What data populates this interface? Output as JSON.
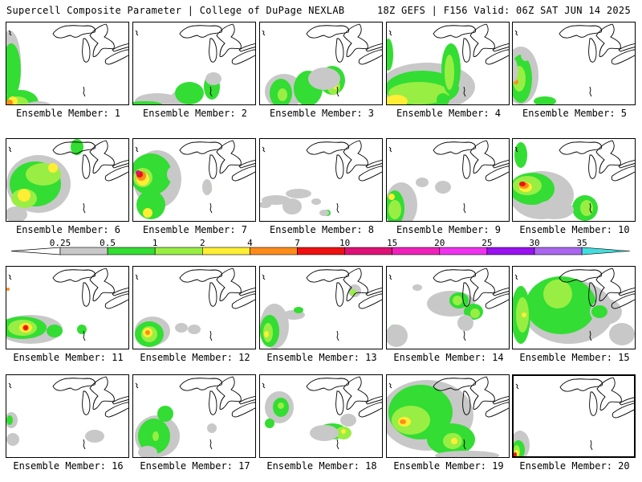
{
  "header": {
    "title_left": "Supercell Composite Parameter | College of DuPage NEXLAB",
    "title_right": "18Z GEFS | F156 Valid: 06Z SAT JUN 14 2025"
  },
  "colorbar": {
    "ticks": [
      "0.25",
      "0.5",
      "1",
      "2",
      "4",
      "7",
      "10",
      "15",
      "20",
      "25",
      "30",
      "35"
    ],
    "colors": [
      "#c8c8c8",
      "#33dd33",
      "#99ee44",
      "#ffee33",
      "#ff8c1a",
      "#ee1111",
      "#dd1177",
      "#ee22bb",
      "#ee33ee",
      "#9911ee",
      "#aa66ee",
      "#44dddd"
    ]
  },
  "members": [
    {
      "label": "Ensemble Member: 1"
    },
    {
      "label": "Ensemble Member: 2"
    },
    {
      "label": "Ensemble Member: 3"
    },
    {
      "label": "Ensemble Member: 4"
    },
    {
      "label": "Ensemble Member: 5"
    },
    {
      "label": "Ensemble Member: 6"
    },
    {
      "label": "Ensemble Member: 7"
    },
    {
      "label": "Ensemble Member: 8"
    },
    {
      "label": "Ensemble Member: 9"
    },
    {
      "label": "Ensemble Member: 10"
    },
    {
      "label": "Ensemble Member: 11"
    },
    {
      "label": "Ensemble Member: 12"
    },
    {
      "label": "Ensemble Member: 13"
    },
    {
      "label": "Ensemble Member: 14"
    },
    {
      "label": "Ensemble Member: 15"
    },
    {
      "label": "Ensemble Member: 16"
    },
    {
      "label": "Ensemble Member: 17"
    },
    {
      "label": "Ensemble Member: 18"
    },
    {
      "label": "Ensemble Member: 19"
    },
    {
      "label": "Ensemble Member: 20"
    }
  ]
}
